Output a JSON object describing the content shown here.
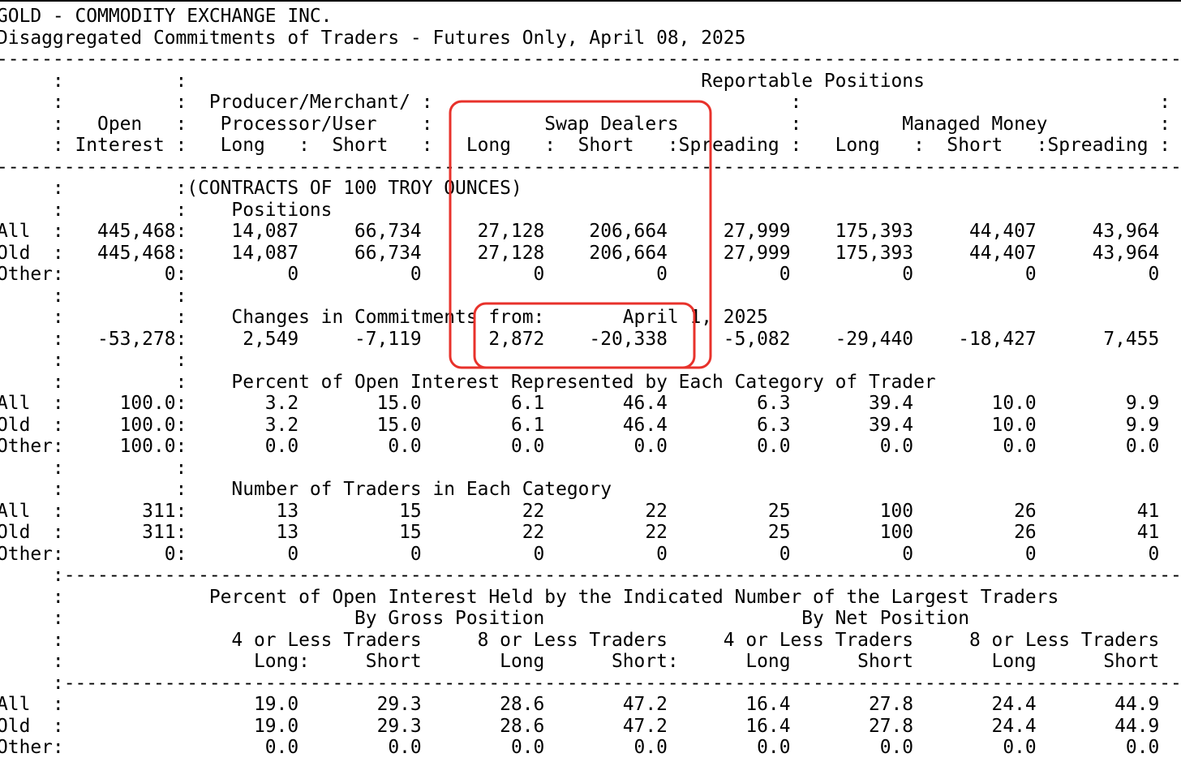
{
  "report": {
    "lines": [
      "GOLD - COMMODITY EXCHANGE INC.",
      "Disaggregated Commitments of Traders - Futures Only, April 08, 2025",
      "----------------------------------------------------------------------------------------------------------",
      "     :          :                                              Reportable Positions",
      "     :          :  Producer/Merchant/ :                                :                                :",
      "     :   Open   :   Processor/User    :          Swap Dealers          :         Managed Money          :",
      "     : Interest :   Long   :  Short   :   Long   :  Short   :Spreading :   Long   :  Short   :Spreading :",
      "----------------------------------------------------------------------------------------------------------",
      "     :          :(CONTRACTS OF 100 TROY OUNCES)",
      "     :          :    Positions",
      "All  :   445,468:    14,087     66,734     27,128    206,664     27,999    175,393     44,407     43,964",
      "Old  :   445,468:    14,087     66,734     27,128    206,664     27,999    175,393     44,407     43,964",
      "Other:         0:         0          0          0          0          0          0          0          0",
      "     :          :",
      "     :          :    Changes in Commitments from:       April 1, 2025",
      "     :   -53,278:     2,549     -7,119      2,872    -20,338     -5,082    -29,440    -18,427      7,455",
      "     :          :",
      "     :          :    Percent of Open Interest Represented by Each Category of Trader",
      "All  :     100.0:       3.2       15.0        6.1       46.4        6.3       39.4       10.0        9.9",
      "Old  :     100.0:       3.2       15.0        6.1       46.4        6.3       39.4       10.0        9.9",
      "Other:     100.0:       0.0        0.0        0.0        0.0        0.0        0.0        0.0        0.0",
      "     :          :",
      "     :          :    Number of Traders in Each Category",
      "All  :       311:        13         15         22         22         25        100         26         41",
      "Old  :       311:        13         15         22         22         25        100         26         41",
      "Other:         0:         0          0          0          0          0          0          0          0",
      "     :----------------------------------------------------------------------------------------------------",
      "     :             Percent of Open Interest Held by the Indicated Number of the Largest Traders",
      "     :                          By Gross Position                       By Net Position",
      "     :               4 or Less Traders     8 or Less Traders     4 or Less Traders     8 or Less Traders",
      "     :                 Long:     Short       Long      Short:      Long      Short       Long      Short",
      "     :----------------------------------------------------------------------------------------------------",
      "All  :                 19.0       29.3       28.6       47.2       16.4       27.8       24.4       44.9",
      "Old  :                 19.0       29.3       28.6       47.2       16.4       27.8       24.4       44.9",
      "Other:                  0.0        0.0        0.0        0.0        0.0        0.0        0.0        0.0"
    ]
  }
}
